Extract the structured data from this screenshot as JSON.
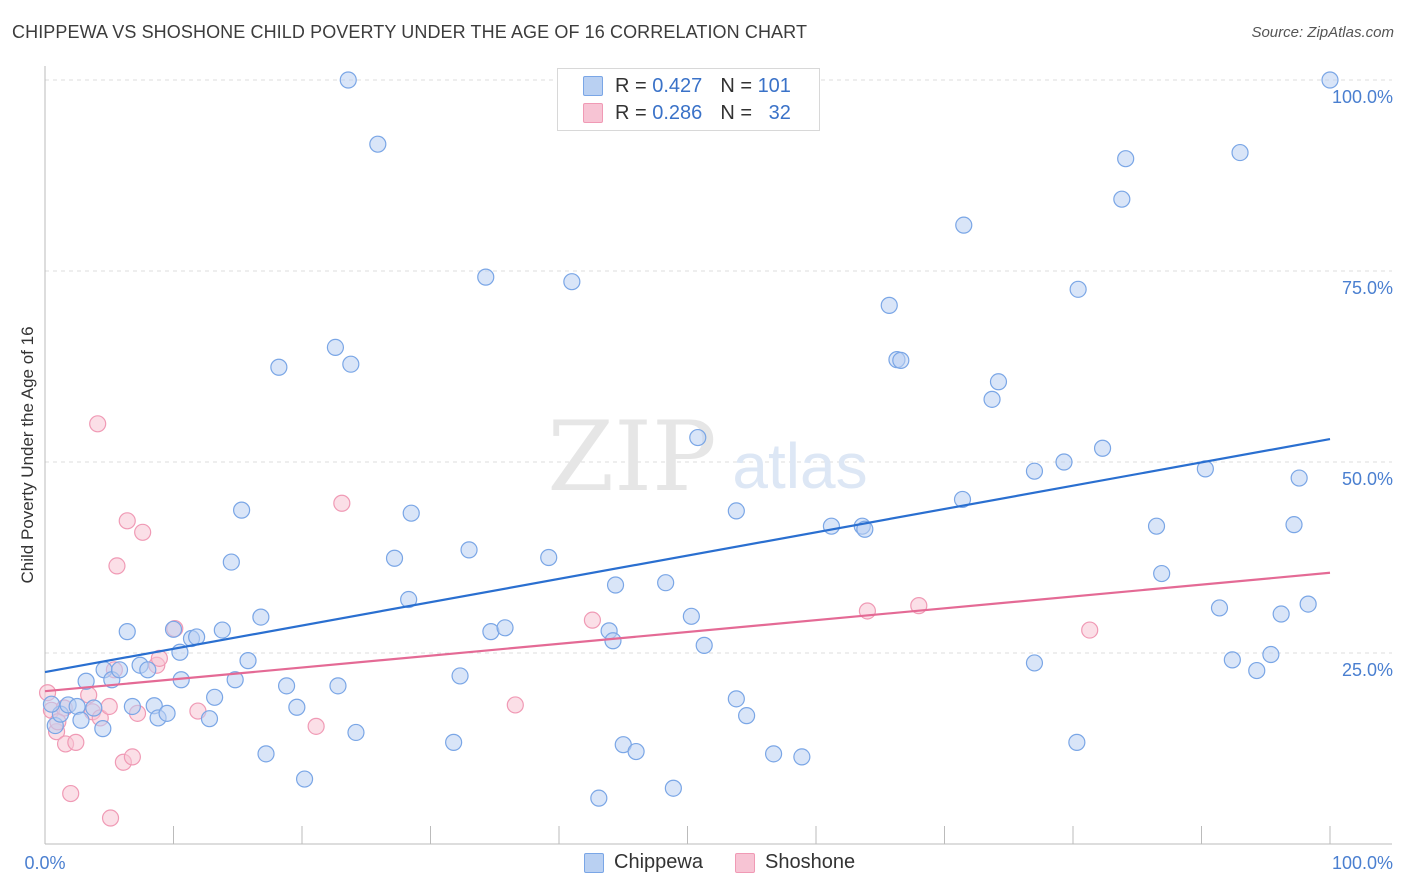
{
  "title": "CHIPPEWA VS SHOSHONE CHILD POVERTY UNDER THE AGE OF 16 CORRELATION CHART",
  "source": "Source: ZipAtlas.com",
  "watermark": {
    "zip": "ZIP",
    "atlas": "atlas"
  },
  "legend": {
    "r_label": "R =",
    "n_label": "N =",
    "rows": [
      {
        "name": "Chippewa",
        "r": "0.427",
        "n": "101",
        "color": "#7aa6e6"
      },
      {
        "name": "Shoshone",
        "r": "0.286",
        "n": "32",
        "color": "#f09ab5"
      }
    ]
  },
  "chart_data": {
    "type": "scatter",
    "xlabel": "",
    "ylabel": "Child Poverty Under the Age of 16",
    "xlim": [
      0,
      100
    ],
    "ylim": [
      0,
      100
    ],
    "x_tick_labels": [
      "0.0%",
      "100.0%"
    ],
    "y_tick_labels": [
      "25.0%",
      "50.0%",
      "75.0%",
      "100.0%"
    ],
    "y_ticks": [
      25,
      50,
      75,
      100
    ],
    "grid": true,
    "legend_position": "top-center",
    "colors": {
      "chippewa_fill": "#b9d0f2",
      "chippewa_stroke": "#7aa6e6",
      "chippewa_line": "#2a6fd0",
      "shoshone_fill": "#f7c4d4",
      "shoshone_stroke": "#f09ab5",
      "shoshone_line": "#e46a95",
      "tick_label": "#4a7fd0"
    },
    "series": [
      {
        "name": "Chippewa",
        "trend": [
          [
            0,
            22.5
          ],
          [
            100,
            53.0
          ]
        ],
        "points": [
          [
            0.8,
            15.5
          ],
          [
            1.2,
            17.0
          ],
          [
            1.8,
            18.2
          ],
          [
            2.5,
            18.0
          ],
          [
            2.8,
            16.2
          ],
          [
            3.2,
            21.3
          ],
          [
            3.8,
            17.8
          ],
          [
            4.5,
            15.1
          ],
          [
            4.6,
            22.8
          ],
          [
            5.2,
            21.5
          ],
          [
            5.8,
            22.8
          ],
          [
            6.4,
            27.8
          ],
          [
            6.8,
            18.0
          ],
          [
            7.4,
            23.4
          ],
          [
            8.0,
            22.8
          ],
          [
            8.5,
            18.1
          ],
          [
            8.8,
            16.5
          ],
          [
            9.5,
            17.1
          ],
          [
            10.0,
            28.1
          ],
          [
            10.5,
            25.1
          ],
          [
            10.6,
            21.5
          ],
          [
            11.4,
            26.9
          ],
          [
            11.8,
            27.1
          ],
          [
            12.8,
            16.4
          ],
          [
            13.2,
            19.2
          ],
          [
            13.8,
            28.0
          ],
          [
            14.5,
            36.9
          ],
          [
            14.8,
            21.5
          ],
          [
            15.3,
            43.7
          ],
          [
            15.8,
            24.0
          ],
          [
            16.8,
            29.7
          ],
          [
            17.2,
            11.8
          ],
          [
            18.2,
            62.4
          ],
          [
            18.8,
            20.7
          ],
          [
            19.6,
            17.9
          ],
          [
            20.2,
            8.5
          ],
          [
            22.6,
            65.0
          ],
          [
            22.8,
            20.7
          ],
          [
            23.6,
            100.0
          ],
          [
            23.8,
            62.8
          ],
          [
            24.2,
            14.6
          ],
          [
            25.9,
            91.6
          ],
          [
            27.2,
            37.4
          ],
          [
            28.3,
            32.0
          ],
          [
            28.5,
            43.3
          ],
          [
            31.8,
            13.3
          ],
          [
            32.3,
            22.0
          ],
          [
            33.0,
            38.5
          ],
          [
            34.3,
            74.2
          ],
          [
            34.7,
            27.8
          ],
          [
            35.8,
            28.3
          ],
          [
            39.2,
            37.5
          ],
          [
            41.0,
            73.6
          ],
          [
            43.1,
            6.0
          ],
          [
            43.9,
            27.9
          ],
          [
            44.2,
            26.6
          ],
          [
            44.4,
            33.9
          ],
          [
            45.0,
            13.0
          ],
          [
            46.0,
            12.1
          ],
          [
            48.3,
            34.2
          ],
          [
            48.9,
            7.3
          ],
          [
            50.3,
            29.8
          ],
          [
            50.8,
            53.2
          ],
          [
            51.3,
            26.0
          ],
          [
            53.8,
            19.0
          ],
          [
            53.8,
            43.6
          ],
          [
            54.6,
            16.8
          ],
          [
            56.7,
            11.8
          ],
          [
            58.9,
            11.4
          ],
          [
            61.2,
            41.6
          ],
          [
            63.6,
            41.6
          ],
          [
            63.8,
            41.2
          ],
          [
            65.7,
            70.5
          ],
          [
            66.3,
            63.4
          ],
          [
            66.6,
            63.3
          ],
          [
            71.4,
            45.1
          ],
          [
            71.5,
            81.0
          ],
          [
            73.7,
            58.2
          ],
          [
            74.2,
            60.5
          ],
          [
            77.0,
            48.8
          ],
          [
            77.0,
            23.7
          ],
          [
            79.3,
            50.0
          ],
          [
            80.3,
            13.3
          ],
          [
            80.4,
            72.6
          ],
          [
            82.3,
            51.8
          ],
          [
            83.8,
            84.4
          ],
          [
            84.1,
            89.7
          ],
          [
            86.5,
            41.6
          ],
          [
            86.9,
            35.4
          ],
          [
            90.3,
            49.1
          ],
          [
            91.4,
            30.9
          ],
          [
            92.4,
            24.1
          ],
          [
            93.0,
            90.5
          ],
          [
            94.3,
            22.7
          ],
          [
            95.4,
            24.8
          ],
          [
            96.2,
            30.1
          ],
          [
            97.2,
            41.8
          ],
          [
            97.6,
            47.9
          ],
          [
            98.3,
            31.4
          ],
          [
            100.0,
            100.0
          ],
          [
            0.5,
            18.3
          ]
        ]
      },
      {
        "name": "Shoshone",
        "trend": [
          [
            0,
            20.0
          ],
          [
            100,
            35.5
          ]
        ],
        "points": [
          [
            0.2,
            19.8
          ],
          [
            0.5,
            17.5
          ],
          [
            0.9,
            14.7
          ],
          [
            1.5,
            17.8
          ],
          [
            1.6,
            13.1
          ],
          [
            2.0,
            6.6
          ],
          [
            2.4,
            13.3
          ],
          [
            3.4,
            19.5
          ],
          [
            3.7,
            17.3
          ],
          [
            4.1,
            55.0
          ],
          [
            4.3,
            16.5
          ],
          [
            5.0,
            18.0
          ],
          [
            5.1,
            3.4
          ],
          [
            5.4,
            22.8
          ],
          [
            5.6,
            36.4
          ],
          [
            6.1,
            10.7
          ],
          [
            6.4,
            42.3
          ],
          [
            6.8,
            11.4
          ],
          [
            7.2,
            17.1
          ],
          [
            7.6,
            40.8
          ],
          [
            8.7,
            23.4
          ],
          [
            8.9,
            24.3
          ],
          [
            10.1,
            28.2
          ],
          [
            11.9,
            17.4
          ],
          [
            21.1,
            15.4
          ],
          [
            23.1,
            44.6
          ],
          [
            36.6,
            18.2
          ],
          [
            42.6,
            29.3
          ],
          [
            64.0,
            30.5
          ],
          [
            68.0,
            31.2
          ],
          [
            81.3,
            28.0
          ],
          [
            1.0,
            16.0
          ]
        ]
      }
    ]
  }
}
